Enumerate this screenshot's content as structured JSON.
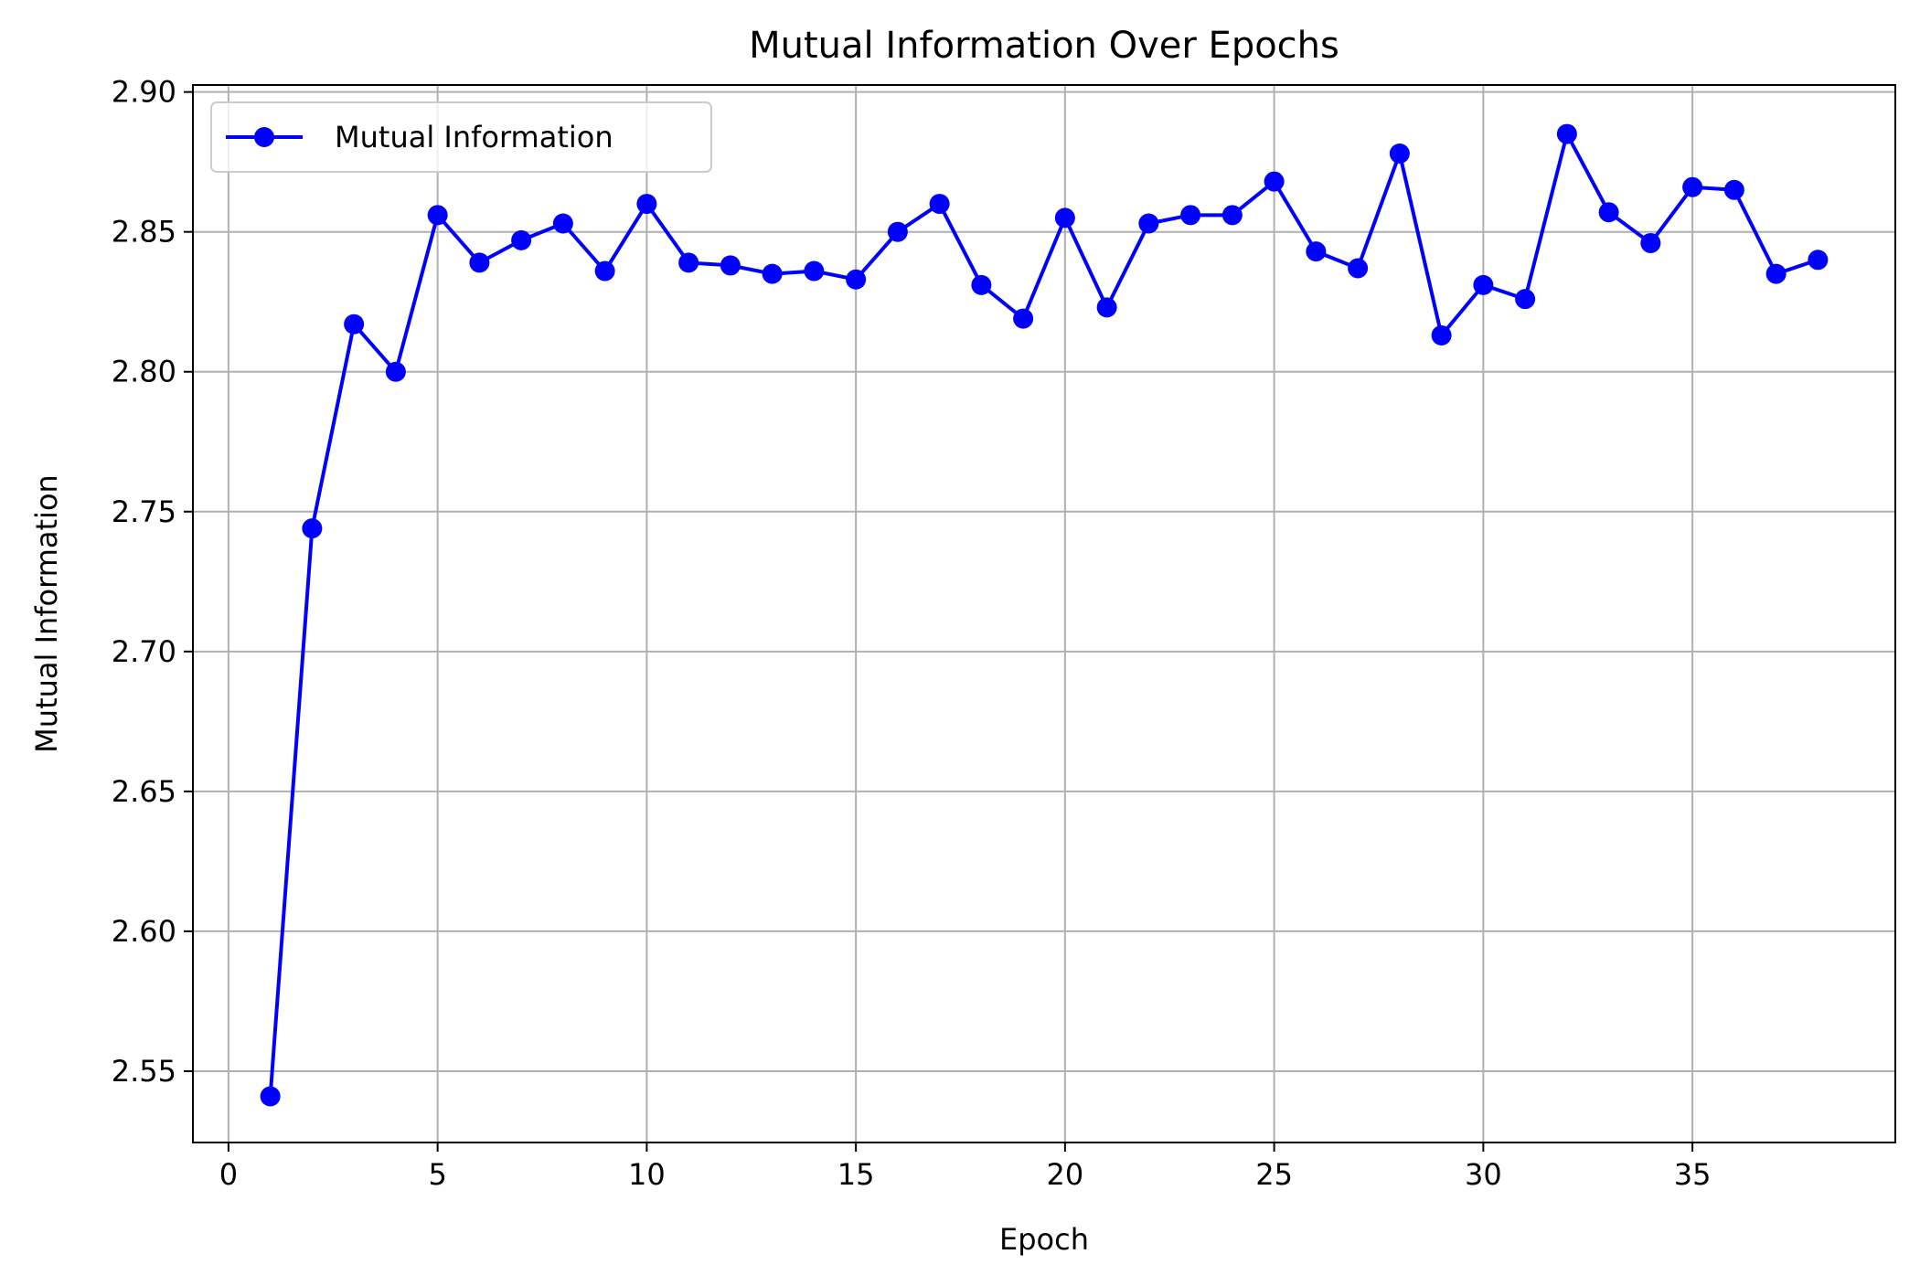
{
  "chart_data": {
    "type": "line",
    "title": "Mutual Information Over Epochs",
    "xlabel": "Epoch",
    "ylabel": "Mutual Information",
    "xlim": [
      -0.85,
      39.85
    ],
    "ylim": [
      2.5245,
      2.9025
    ],
    "x_ticks": [
      0,
      5,
      10,
      15,
      20,
      25,
      30,
      35
    ],
    "x_tick_labels": [
      "0",
      "5",
      "10",
      "15",
      "20",
      "25",
      "30",
      "35"
    ],
    "y_ticks": [
      2.55,
      2.6,
      2.65,
      2.7,
      2.75,
      2.8,
      2.85,
      2.9
    ],
    "y_tick_labels": [
      "2.55",
      "2.60",
      "2.65",
      "2.70",
      "2.75",
      "2.80",
      "2.85",
      "2.90"
    ],
    "grid": true,
    "legend_position": "top-left",
    "x": [
      1,
      2,
      3,
      4,
      5,
      6,
      7,
      8,
      9,
      10,
      11,
      12,
      13,
      14,
      15,
      16,
      17,
      18,
      19,
      20,
      21,
      22,
      23,
      24,
      25,
      26,
      27,
      28,
      29,
      30,
      31,
      32,
      33,
      34,
      35,
      36,
      37,
      38
    ],
    "series": [
      {
        "name": "Mutual Information",
        "color": "#0000ff",
        "marker": "circle",
        "values": [
          2.541,
          2.744,
          2.817,
          2.8,
          2.856,
          2.839,
          2.847,
          2.853,
          2.836,
          2.86,
          2.839,
          2.838,
          2.835,
          2.836,
          2.833,
          2.85,
          2.86,
          2.831,
          2.819,
          2.855,
          2.823,
          2.853,
          2.856,
          2.856,
          2.868,
          2.843,
          2.837,
          2.878,
          2.813,
          2.831,
          2.826,
          2.885,
          2.857,
          2.846,
          2.866,
          2.865,
          2.835,
          2.84
        ]
      }
    ]
  }
}
